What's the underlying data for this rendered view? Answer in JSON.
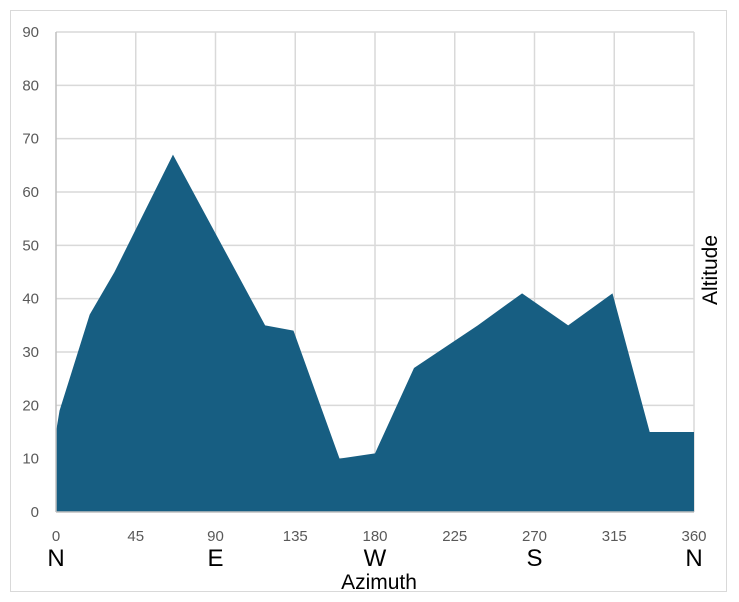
{
  "chart_data": {
    "type": "area",
    "xlabel": "Azimuth",
    "ylabel": "Altitude",
    "xlim": [
      0,
      360
    ],
    "ylim": [
      0,
      90
    ],
    "grid": true,
    "x_ticks": [
      0,
      45,
      90,
      135,
      180,
      225,
      270,
      315,
      360
    ],
    "y_ticks": [
      0,
      10,
      20,
      30,
      40,
      50,
      60,
      70,
      80,
      90
    ],
    "compass_labels": [
      {
        "x": 0,
        "label": "N"
      },
      {
        "x": 90,
        "label": "E"
      },
      {
        "x": 180,
        "label": "W"
      },
      {
        "x": 270,
        "label": "S"
      },
      {
        "x": 360,
        "label": "N"
      }
    ],
    "series": [
      {
        "color": "#175e82",
        "x": [
          0,
          2,
          19,
          33,
          66,
          118,
          134,
          160,
          180,
          202,
          238,
          263,
          289,
          314,
          335,
          360
        ],
        "y": [
          15,
          19,
          37,
          45,
          67,
          35,
          34,
          10,
          11,
          27,
          35,
          41,
          35,
          41,
          15,
          15
        ]
      }
    ]
  }
}
